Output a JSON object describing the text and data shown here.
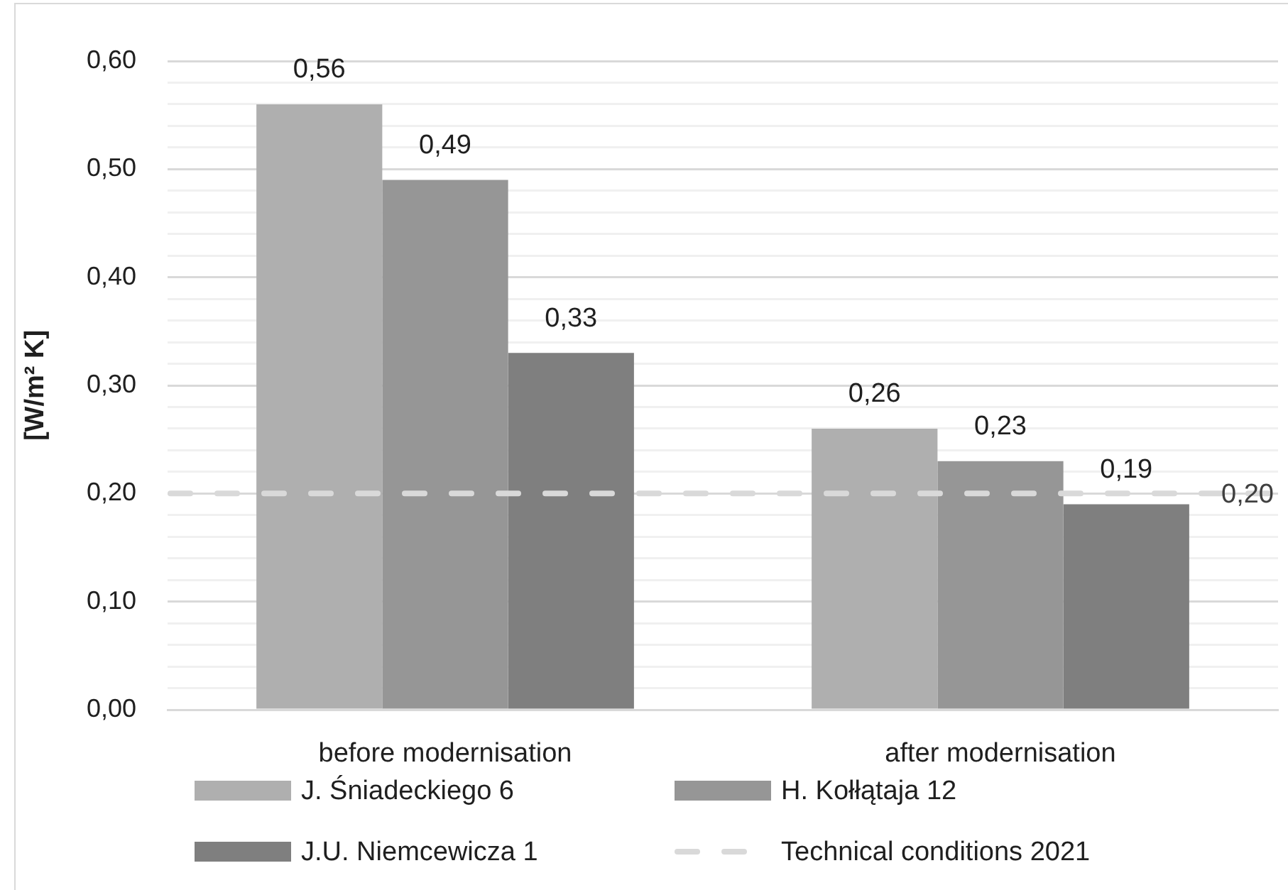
{
  "chart_data": {
    "type": "bar",
    "ylabel": "[W/m² K]",
    "categories": [
      "before modernisation",
      "after modernisation"
    ],
    "series": [
      {
        "name": "J. Śniadeckiego 6",
        "color": "#afafaf",
        "values": [
          0.56,
          0.26
        ],
        "value_labels": [
          "0,56",
          "0,26"
        ]
      },
      {
        "name": "H. Kołłątaja 12",
        "color": "#969696",
        "values": [
          0.49,
          0.23
        ],
        "value_labels": [
          "0,49",
          "0,23"
        ]
      },
      {
        "name": "J.U. Niemcewicza 1",
        "color": "#7f7f7f",
        "values": [
          0.33,
          0.19
        ],
        "value_labels": [
          "0,33",
          "0,19"
        ]
      }
    ],
    "ylim": [
      0,
      0.6
    ],
    "yticks": [
      {
        "value": 0,
        "label": "0,00"
      },
      {
        "value": 0.02,
        "label": null
      },
      {
        "value": 0.04,
        "label": null
      },
      {
        "value": 0.06,
        "label": null
      },
      {
        "value": 0.08,
        "label": null
      },
      {
        "value": 0.1,
        "label": "0,10"
      },
      {
        "value": 0.12,
        "label": null
      },
      {
        "value": 0.14,
        "label": null
      },
      {
        "value": 0.16,
        "label": null
      },
      {
        "value": 0.18,
        "label": null
      },
      {
        "value": 0.2,
        "label": "0,20"
      },
      {
        "value": 0.22,
        "label": null
      },
      {
        "value": 0.24,
        "label": null
      },
      {
        "value": 0.26,
        "label": null
      },
      {
        "value": 0.28,
        "label": null
      },
      {
        "value": 0.3,
        "label": "0,30"
      },
      {
        "value": 0.32,
        "label": null
      },
      {
        "value": 0.34,
        "label": null
      },
      {
        "value": 0.36,
        "label": null
      },
      {
        "value": 0.38,
        "label": null
      },
      {
        "value": 0.4,
        "label": "0,40"
      },
      {
        "value": 0.42,
        "label": null
      },
      {
        "value": 0.44,
        "label": null
      },
      {
        "value": 0.46,
        "label": null
      },
      {
        "value": 0.48,
        "label": null
      },
      {
        "value": 0.5,
        "label": "0,50"
      },
      {
        "value": 0.52,
        "label": null
      },
      {
        "value": 0.54,
        "label": null
      },
      {
        "value": 0.56,
        "label": null
      },
      {
        "value": 0.58,
        "label": null
      },
      {
        "value": 0.6,
        "label": "0,60"
      }
    ],
    "grid": "y",
    "legend": "bottom",
    "ref_lines": [
      {
        "axis": "y",
        "value": 0.2,
        "label": "Technical conditions 2021",
        "color": "#d9d9d9",
        "line_style": "dashed"
      }
    ],
    "annotations": [
      {
        "text": "0,20",
        "y": 0.2
      }
    ]
  }
}
